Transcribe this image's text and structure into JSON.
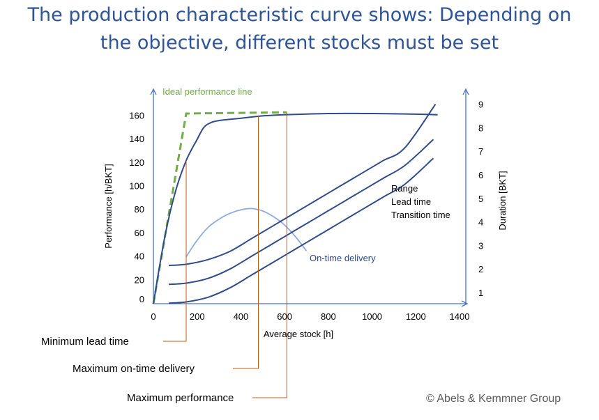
{
  "title_line1": "The production characteristic curve shows: Depending on",
  "title_line2": "the objective, different stocks must be set",
  "copyright": "© Abels & Kemmner Group",
  "chart_data": {
    "type": "line",
    "xlabel": "Average stock [h]",
    "ylabel_left": "Performance [h/BKT]",
    "ylabel_right": "Duration [BKT]",
    "x_ticks": [
      0,
      200,
      400,
      600,
      800,
      1000,
      1200,
      1400
    ],
    "y_left_ticks": [
      0,
      20,
      40,
      60,
      80,
      100,
      120,
      140,
      160
    ],
    "y_right_ticks": [
      1,
      2,
      3,
      4,
      5,
      6,
      7,
      8,
      9
    ],
    "xlim": [
      0,
      1400
    ],
    "ylim_left": [
      0,
      170
    ],
    "colors": {
      "main": "#2F4B8A",
      "ideal": "#70AD47",
      "ontime": "#8FAADC",
      "guide": "#C55A11",
      "axis": "#4472C4"
    },
    "series": [
      {
        "name": "Ideal performance line",
        "axis": "left",
        "style": "dashed",
        "x": [
          0,
          150,
          610
        ],
        "y": [
          0,
          162,
          163
        ]
      },
      {
        "name": "",
        "axis": "left",
        "x": [
          0,
          50,
          100,
          150,
          200,
          230,
          260,
          300,
          400,
          500,
          600,
          800,
          1000,
          1200,
          1300
        ],
        "y": [
          0,
          55,
          95,
          122,
          140,
          150,
          154,
          156,
          158,
          160,
          161,
          162,
          162,
          161.5,
          161
        ]
      },
      {
        "name": "On-time delivery",
        "axis": "left",
        "x": [
          150,
          200,
          250,
          300,
          350,
          400,
          450,
          500,
          550,
          600,
          650,
          700
        ],
        "y": [
          40,
          54,
          65,
          72,
          77,
          80,
          81,
          79,
          74,
          67,
          57,
          45
        ]
      },
      {
        "name": "Range",
        "axis": "right",
        "x": [
          70,
          150,
          250,
          350,
          450,
          550,
          650,
          750,
          850,
          950,
          1050,
          1150,
          1290
        ],
        "y": [
          2.15,
          2.2,
          2.4,
          2.75,
          3.3,
          3.85,
          4.4,
          4.95,
          5.5,
          6.05,
          6.6,
          7.15,
          9.0
        ]
      },
      {
        "name": "Lead time",
        "axis": "right",
        "x": [
          70,
          150,
          250,
          350,
          450,
          550,
          650,
          750,
          850,
          950,
          1050,
          1150,
          1280
        ],
        "y": [
          1.35,
          1.4,
          1.6,
          2.0,
          2.55,
          3.1,
          3.65,
          4.2,
          4.75,
          5.3,
          5.85,
          6.4,
          7.5
        ]
      },
      {
        "name": "Transition time",
        "axis": "right",
        "x": [
          70,
          150,
          250,
          350,
          450,
          550,
          650,
          750,
          850,
          950,
          1050,
          1150,
          1280
        ],
        "y": [
          0.55,
          0.6,
          0.8,
          1.2,
          1.75,
          2.3,
          2.85,
          3.4,
          3.95,
          4.5,
          5.05,
          5.6,
          6.7
        ]
      }
    ],
    "annotations": [
      {
        "text": "Ideal performance line"
      },
      {
        "text": "On-time delivery"
      },
      {
        "text": "Range"
      },
      {
        "text": "Lead time"
      },
      {
        "text": "Transition time"
      },
      {
        "text": "Minimum lead time",
        "x": 150
      },
      {
        "text": "Maximum on-time delivery",
        "x": 480
      },
      {
        "text": "Maximum performance",
        "x": 610
      }
    ]
  }
}
